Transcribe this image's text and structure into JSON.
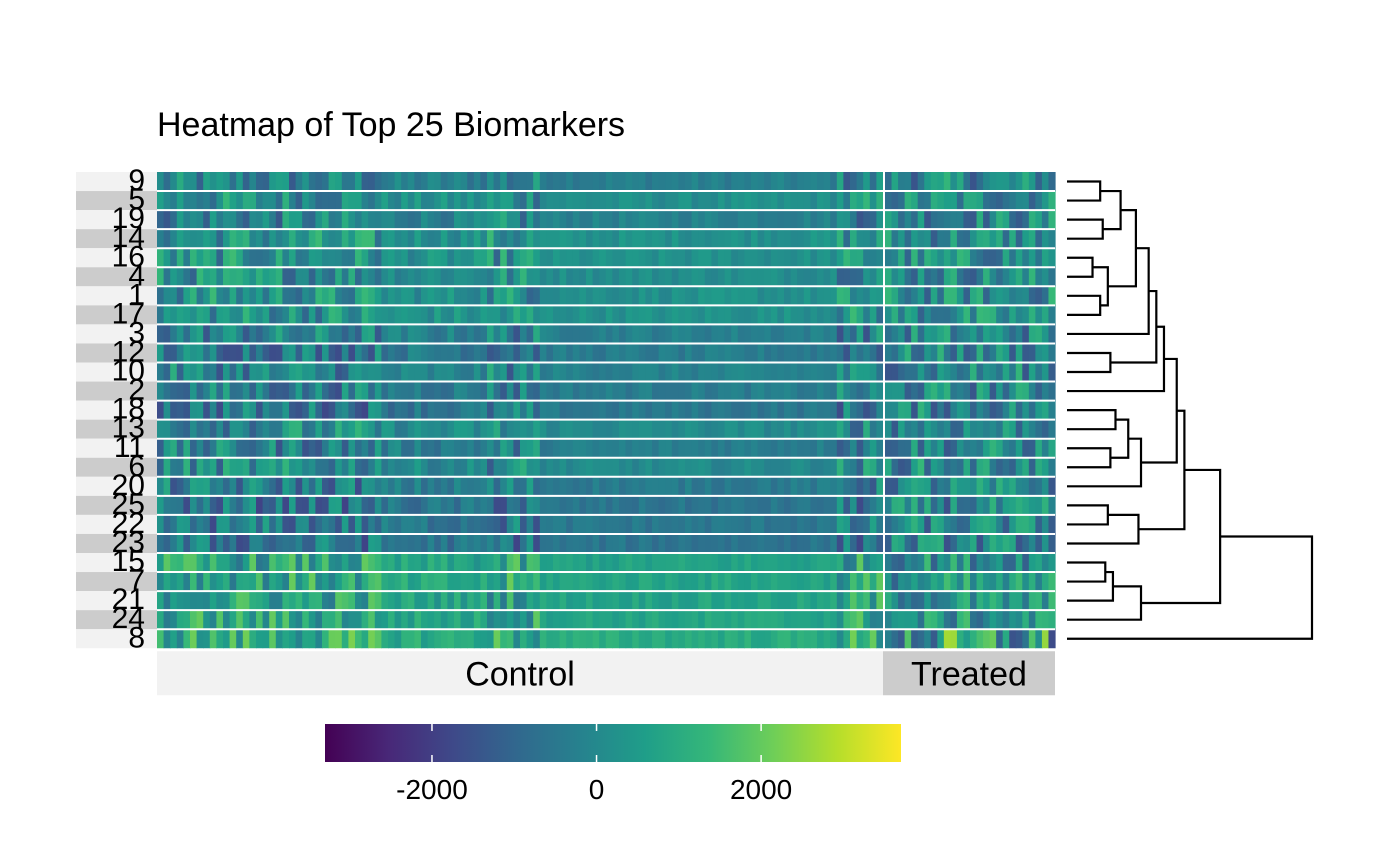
{
  "chart_data": {
    "type": "heatmap",
    "title": "Heatmap of Top 25 Biomarkers",
    "row_labels": [
      "9",
      "5",
      "19",
      "14",
      "16",
      "4",
      "1",
      "17",
      "3",
      "12",
      "10",
      "2",
      "18",
      "13",
      "11",
      "6",
      "20",
      "25",
      "22",
      "23",
      "15",
      "7",
      "21",
      "24",
      "8"
    ],
    "groups": [
      {
        "name": "Control",
        "n_cols": 110
      },
      {
        "name": "Treated",
        "n_cols": 26
      }
    ],
    "colorbar": {
      "palette": "viridis",
      "min": -3300,
      "max": 3700,
      "ticks": [
        -2000,
        0,
        2000
      ],
      "tick_labels": [
        "-2000",
        "0",
        "2000"
      ],
      "colors": [
        "#440154",
        "#482878",
        "#3e4989",
        "#31688e",
        "#26828e",
        "#1f9e89",
        "#35b779",
        "#6ece58",
        "#b5de2b",
        "#fde725"
      ]
    },
    "row_band_colors": [
      "#f2f2f2",
      "#cccccc"
    ],
    "group_band_colors": [
      "#f2f2f2",
      "#cccccc"
    ],
    "row_profiles": {
      "9": -300,
      "5": 150,
      "19": -200,
      "14": 250,
      "16": 200,
      "4": 150,
      "1": 200,
      "17": 250,
      "3": -250,
      "12": -400,
      "10": -200,
      "2": -350,
      "18": -500,
      "13": 50,
      "11": -300,
      "6": 0,
      "20": -400,
      "25": -600,
      "22": -500,
      "23": -600,
      "15": 700,
      "7": 800,
      "21": 750,
      "24": 800,
      "8": 1000
    },
    "dendrogram": {
      "side": "right",
      "merges": [
        {
          "a": "9",
          "b": "5",
          "height": 1.3
        },
        {
          "a": "19",
          "b": "14",
          "height": 1.4
        },
        {
          "a": "m0",
          "b": "m1",
          "height": 2.1
        },
        {
          "a": "16",
          "b": "4",
          "height": 1.0
        },
        {
          "a": "1",
          "b": "17",
          "height": 1.3
        },
        {
          "a": "m3",
          "b": "m4",
          "height": 1.6
        },
        {
          "a": "m2",
          "b": "m5",
          "height": 2.7
        },
        {
          "a": "m6",
          "b": "3",
          "height": 3.2
        },
        {
          "a": "12",
          "b": "10",
          "height": 1.7
        },
        {
          "a": "m7",
          "b": "m8",
          "height": 3.5
        },
        {
          "a": "m9",
          "b": "2",
          "height": 3.8
        },
        {
          "a": "18",
          "b": "13",
          "height": 1.9
        },
        {
          "a": "11",
          "b": "6",
          "height": 1.7
        },
        {
          "a": "m11",
          "b": "m12",
          "height": 2.4
        },
        {
          "a": "m13",
          "b": "20",
          "height": 2.9
        },
        {
          "a": "m10",
          "b": "m14",
          "height": 4.3
        },
        {
          "a": "25",
          "b": "22",
          "height": 1.6
        },
        {
          "a": "m16",
          "b": "23",
          "height": 2.8
        },
        {
          "a": "m15",
          "b": "m17",
          "height": 4.6
        },
        {
          "a": "15",
          "b": "7",
          "height": 1.5
        },
        {
          "a": "m19",
          "b": "21",
          "height": 1.8
        },
        {
          "a": "m20",
          "b": "24",
          "height": 2.9
        },
        {
          "a": "m18",
          "b": "m21",
          "height": 6.0
        },
        {
          "a": "m22",
          "b": "8",
          "height": 9.6
        }
      ]
    }
  }
}
